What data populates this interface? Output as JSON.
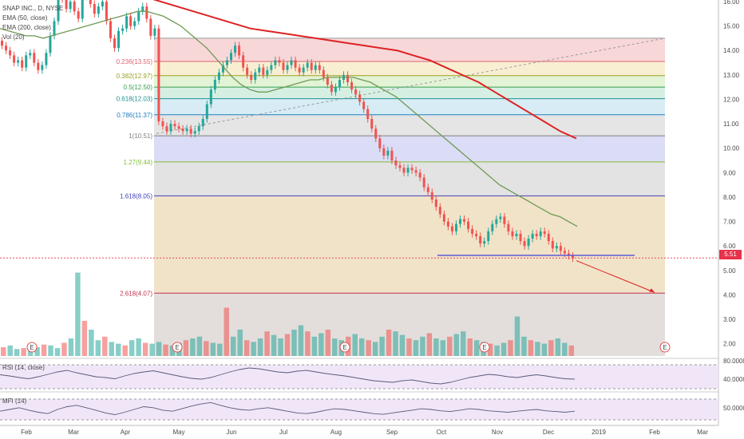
{
  "header": {
    "symbol_line": "SNAP INC., D, NYSE",
    "indicators": [
      "EMA (50, close)",
      "EMA (200, close)",
      "Vol (20)"
    ]
  },
  "colors": {
    "up": "#26a69a",
    "down": "#ef5350",
    "ema50": "#6f9a55",
    "ema200": "#dd2222",
    "last_price": "#e8314a",
    "support": "#5b5bd6"
  },
  "chart_data": {
    "type": "candlestick",
    "title": "SNAP INC., D, NYSE",
    "x_tick_labels": [
      "Feb",
      "Mar",
      "Apr",
      "May",
      "Jun",
      "Jul",
      "Aug",
      "Sep",
      "Oct",
      "Nov",
      "Dec",
      "2019",
      "Feb",
      "Mar"
    ],
    "y_tick_labels": [
      "16.00",
      "15.00",
      "14.00",
      "13.00",
      "12.00",
      "11.00",
      "10.00",
      "9.00",
      "8.00",
      "7.00",
      "6.00",
      "5.00",
      "4.00",
      "3.00",
      "2.00"
    ],
    "ylim": [
      1.5,
      16.0
    ],
    "last_price": 5.51,
    "last_price_label": "5.51",
    "fibonacci": [
      {
        "label": "0.236(13.55)",
        "price": 13.55,
        "color": "#e06070"
      },
      {
        "label": "0.382(12.97)",
        "price": 12.97,
        "color": "#9aa020"
      },
      {
        "label": "0.5(12.50)",
        "price": 12.5,
        "color": "#36a050"
      },
      {
        "label": "0.618(12.03)",
        "price": 12.03,
        "color": "#209090"
      },
      {
        "label": "0.786(11.37)",
        "price": 11.37,
        "color": "#2080c0"
      },
      {
        "label": "1(10.51)",
        "price": 10.51,
        "color": "#808080"
      },
      {
        "label": "1.27(9.44)",
        "price": 9.44,
        "color": "#7fc030"
      },
      {
        "label": "1.618(8.05)",
        "price": 8.05,
        "color": "#4040c0"
      },
      {
        "label": "2.618(4.07)",
        "price": 4.07,
        "color": "#c03050"
      }
    ],
    "fib_top": 14.5,
    "fib_bottom": 1.5,
    "earnings_marker": "E",
    "candles_close": [
      14.2,
      14.0,
      13.8,
      13.5,
      13.6,
      13.3,
      13.8,
      13.9,
      13.5,
      13.2,
      13.4,
      13.9,
      14.6,
      15.2,
      16.3,
      16.1,
      15.7,
      16.0,
      15.6,
      15.3,
      16.2,
      16.4,
      15.9,
      15.5,
      15.8,
      16.0,
      15.2,
      14.5,
      14.1,
      14.8,
      14.9,
      15.4,
      15.0,
      15.2,
      15.6,
      15.8,
      15.3,
      14.6,
      14.9,
      11.1,
      10.9,
      10.7,
      11.0,
      10.9,
      10.8,
      10.7,
      10.8,
      10.6,
      10.7,
      10.9,
      11.2,
      11.8,
      12.4,
      12.8,
      13.1,
      13.4,
      13.6,
      13.9,
      14.2,
      13.8,
      13.3,
      13.0,
      12.8,
      13.1,
      13.3,
      13.0,
      13.2,
      13.4,
      13.6,
      13.5,
      13.2,
      13.4,
      13.6,
      13.3,
      13.1,
      13.3,
      13.5,
      13.2,
      13.4,
      13.2,
      12.9,
      12.6,
      12.3,
      12.5,
      12.8,
      13.0,
      12.7,
      12.4,
      12.2,
      11.9,
      11.6,
      11.2,
      10.8,
      10.4,
      10.0,
      9.7,
      9.9,
      9.5,
      9.3,
      9.2,
      9.0,
      9.2,
      9.1,
      9.0,
      8.8,
      8.4,
      8.2,
      7.9,
      7.6,
      7.3,
      7.0,
      6.8,
      6.6,
      6.9,
      7.1,
      7.0,
      6.7,
      6.5,
      6.4,
      6.1,
      6.2,
      6.6,
      6.9,
      7.1,
      7.2,
      6.9,
      6.6,
      6.4,
      6.5,
      6.2,
      6.0,
      6.3,
      6.5,
      6.4,
      6.6,
      6.5,
      6.2,
      5.9,
      6.0,
      5.8,
      5.7,
      5.6,
      5.5
    ],
    "ema50_close": [
      14.9,
      14.8,
      14.7,
      14.6,
      14.6,
      14.5,
      14.6,
      14.7,
      14.8,
      14.9,
      15.0,
      15.1,
      15.2,
      15.3,
      15.4,
      15.5,
      15.6,
      15.6,
      15.5,
      15.4,
      15.2,
      15.0,
      14.7,
      14.4,
      14.1,
      13.7,
      13.3,
      12.9,
      12.6,
      12.4,
      12.3,
      12.3,
      12.4,
      12.5,
      12.6,
      12.7,
      12.8,
      12.8,
      12.9,
      12.9,
      12.9,
      12.9,
      12.8,
      12.7,
      12.5,
      12.3,
      12.1,
      11.8,
      11.5,
      11.2,
      10.9,
      10.6,
      10.3,
      10.0,
      9.7,
      9.4,
      9.1,
      8.8,
      8.5,
      8.3,
      8.1,
      7.9,
      7.7,
      7.5,
      7.3,
      7.2,
      7.0,
      6.8
    ],
    "ema200_close": [
      16.6,
      16.5,
      16.3,
      16.1,
      15.9,
      15.7,
      15.5,
      15.3,
      15.1,
      14.9,
      14.8,
      14.7,
      14.6,
      14.5,
      14.4,
      14.3,
      14.2,
      14.1,
      14.0,
      13.8,
      13.6,
      13.3,
      13.0,
      12.7,
      12.3,
      11.9,
      11.5,
      11.1,
      10.7,
      10.4
    ],
    "volume_relative": [
      0.1,
      0.12,
      0.08,
      0.09,
      0.11,
      0.1,
      0.13,
      0.12,
      0.09,
      0.15,
      0.2,
      0.95,
      0.4,
      0.3,
      0.18,
      0.22,
      0.16,
      0.14,
      0.12,
      0.18,
      0.2,
      0.15,
      0.14,
      0.16,
      0.13,
      0.12,
      0.15,
      0.18,
      0.2,
      0.22,
      0.17,
      0.15,
      0.14,
      0.55,
      0.22,
      0.3,
      0.18,
      0.16,
      0.2,
      0.28,
      0.24,
      0.2,
      0.25,
      0.3,
      0.35,
      0.28,
      0.22,
      0.26,
      0.3,
      0.2,
      0.18,
      0.22,
      0.25,
      0.2,
      0.18,
      0.16,
      0.22,
      0.3,
      0.28,
      0.24,
      0.2,
      0.18,
      0.22,
      0.26,
      0.2,
      0.18,
      0.22,
      0.25,
      0.28,
      0.2,
      0.18,
      0.16,
      0.14,
      0.12,
      0.15,
      0.18,
      0.45,
      0.22,
      0.18,
      0.16,
      0.14,
      0.18,
      0.2,
      0.15,
      0.12
    ],
    "rsi_panel": {
      "title": "RSI (14, close)",
      "levels": [
        "80.0000",
        "40.0000"
      ],
      "values": [
        55,
        52,
        48,
        45,
        50,
        56,
        62,
        66,
        60,
        55,
        50,
        48,
        45,
        52,
        58,
        62,
        65,
        60,
        55,
        50,
        46,
        44,
        48,
        55,
        62,
        68,
        72,
        70,
        66,
        62,
        60,
        64,
        66,
        62,
        58,
        55,
        52,
        48,
        44,
        40,
        38,
        36,
        40,
        42,
        38,
        34,
        32,
        36,
        42,
        48,
        52,
        56,
        54,
        50,
        48,
        52,
        55,
        52,
        48,
        45,
        44
      ]
    },
    "mfi_panel": {
      "title": "MFI (14)",
      "levels": [
        "50.0000"
      ],
      "values": [
        45,
        50,
        55,
        48,
        42,
        38,
        50,
        58,
        62,
        55,
        48,
        40,
        35,
        42,
        50,
        58,
        55,
        48,
        45,
        52,
        60,
        66,
        70,
        62,
        55,
        50,
        48,
        52,
        55,
        50,
        45,
        40,
        38,
        42,
        48,
        52,
        50,
        46,
        42,
        38,
        36,
        40,
        44,
        48,
        52,
        50,
        46,
        44,
        48,
        52,
        50,
        46,
        44,
        42,
        45,
        48,
        50,
        46,
        44,
        42,
        45
      ]
    }
  }
}
